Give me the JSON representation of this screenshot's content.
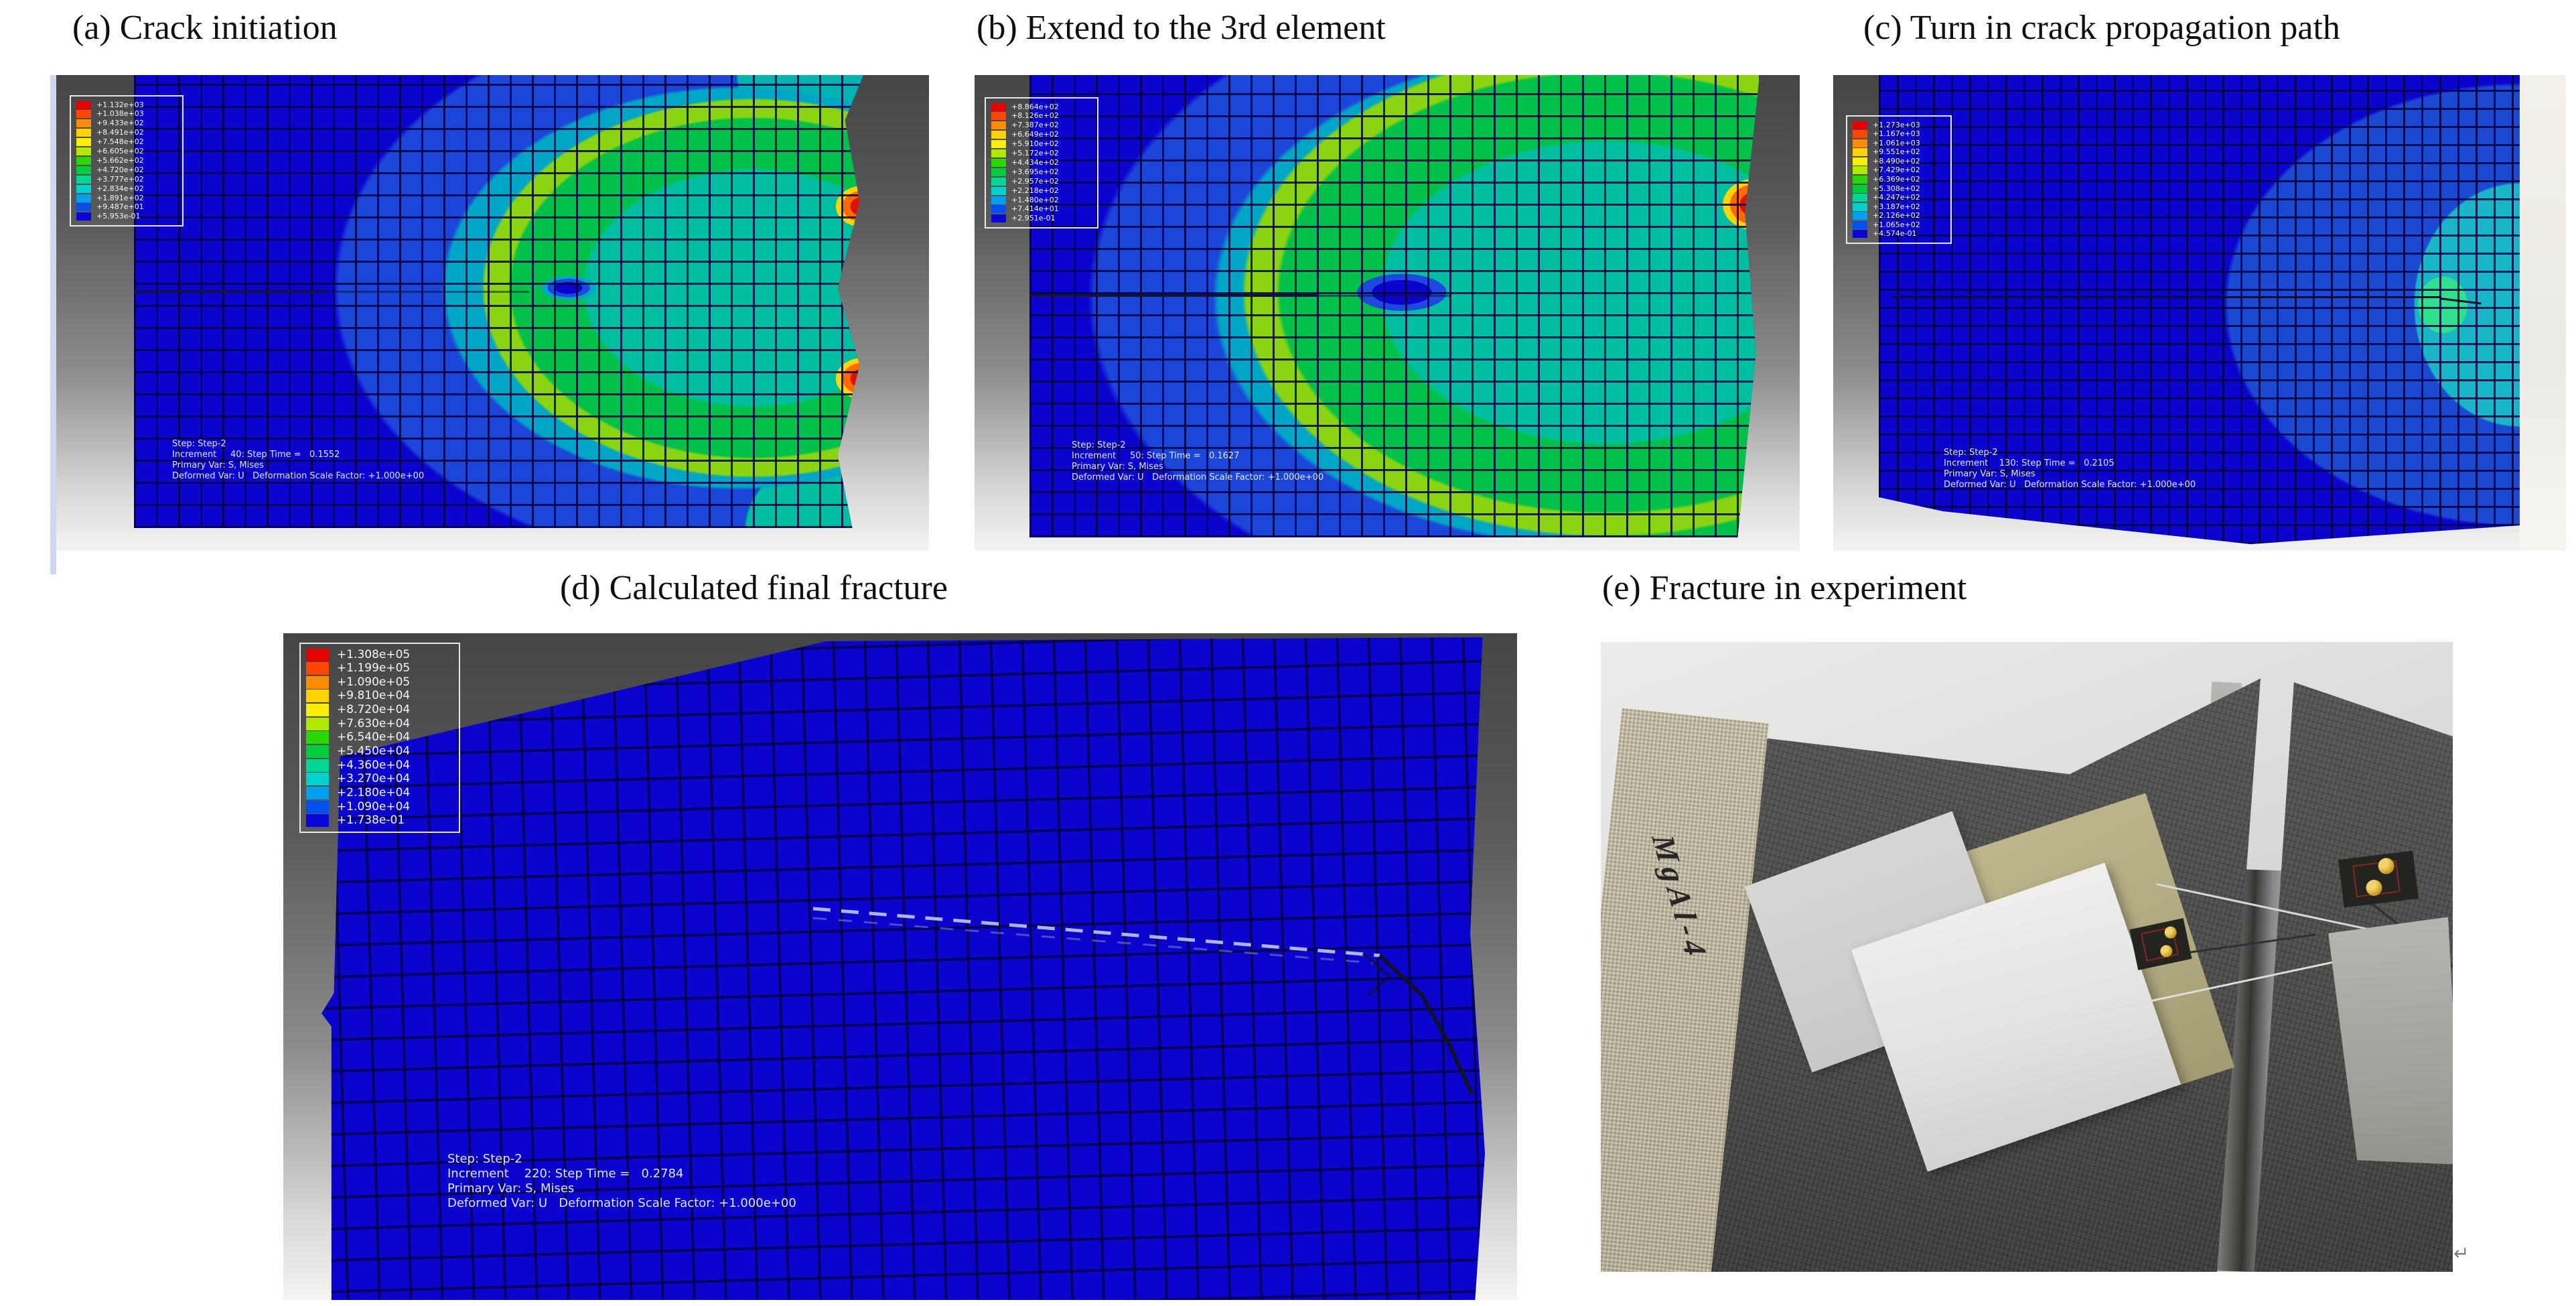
{
  "figure": {
    "titles": {
      "a": "(a) Crack initiation",
      "b": "(b) Extend to the 3rd element",
      "c": "(c) Turn in crack propagation path",
      "d": "(d) Calculated final fracture",
      "e": "(e) Fracture in experiment"
    },
    "legend_colors": [
      "#e60000",
      "#ff4600",
      "#ff8c00",
      "#ffd200",
      "#f8f000",
      "#b0e800",
      "#28d800",
      "#00cd3c",
      "#00d795",
      "#00d2cd",
      "#00a0f0",
      "#0050f0",
      "#0b04d8"
    ],
    "panels": {
      "a": {
        "legend_values": [
          "+1.132e+03",
          "+1.038e+03",
          "+9.433e+02",
          "+8.491e+02",
          "+7.548e+02",
          "+6.605e+02",
          "+5.662e+02",
          "+4.720e+02",
          "+3.777e+02",
          "+2.834e+02",
          "+1.891e+02",
          "+9.487e+01",
          "+5.953e-01"
        ],
        "step_lines": [
          "Step: Step-2",
          "Increment     40: Step Time =   0.1552",
          "Primary Var: S, Mises",
          "Deformed Var: U   Deformation Scale Factor: +1.000e+00"
        ]
      },
      "b": {
        "legend_values": [
          "+8.864e+02",
          "+8.126e+02",
          "+7.387e+02",
          "+6.649e+02",
          "+5.910e+02",
          "+5.172e+02",
          "+4.434e+02",
          "+3.695e+02",
          "+2.957e+02",
          "+2.218e+02",
          "+1.480e+02",
          "+7.414e+01",
          "+2.951e-01"
        ],
        "step_lines": [
          "Step: Step-2",
          "Increment     50: Step Time =   0.1627",
          "Primary Var: S, Mises",
          "Deformed Var: U   Deformation Scale Factor: +1.000e+00"
        ]
      },
      "c": {
        "legend_values": [
          "+1.273e+03",
          "+1.167e+03",
          "+1.061e+03",
          "+9.551e+02",
          "+8.490e+02",
          "+7.429e+02",
          "+6.369e+02",
          "+5.308e+02",
          "+4.247e+02",
          "+3.187e+02",
          "+2.126e+02",
          "+1.065e+02",
          "+4.574e-01"
        ],
        "step_lines": [
          "Step: Step-2",
          "Increment    130: Step Time =   0.2105",
          "Primary Var: S, Mises",
          "Deformed Var: U   Deformation Scale Factor: +1.000e+00"
        ]
      },
      "d": {
        "legend_values": [
          "+1.308e+05",
          "+1.199e+05",
          "+1.090e+05",
          "+9.810e+04",
          "+8.720e+04",
          "+7.630e+04",
          "+6.540e+04",
          "+5.450e+04",
          "+4.360e+04",
          "+3.270e+04",
          "+2.180e+04",
          "+1.090e+04",
          "+1.738e-01"
        ],
        "step_lines": [
          "Step: Step-2",
          "Increment    220: Step Time =   0.2784",
          "Primary Var: S, Mises",
          "Deformed Var: U   Deformation Scale Factor: +1.000e+00"
        ]
      }
    },
    "photo": {
      "handwritten_label": "MgAl-4"
    },
    "marks": {
      "return_symbol": "↵"
    }
  }
}
